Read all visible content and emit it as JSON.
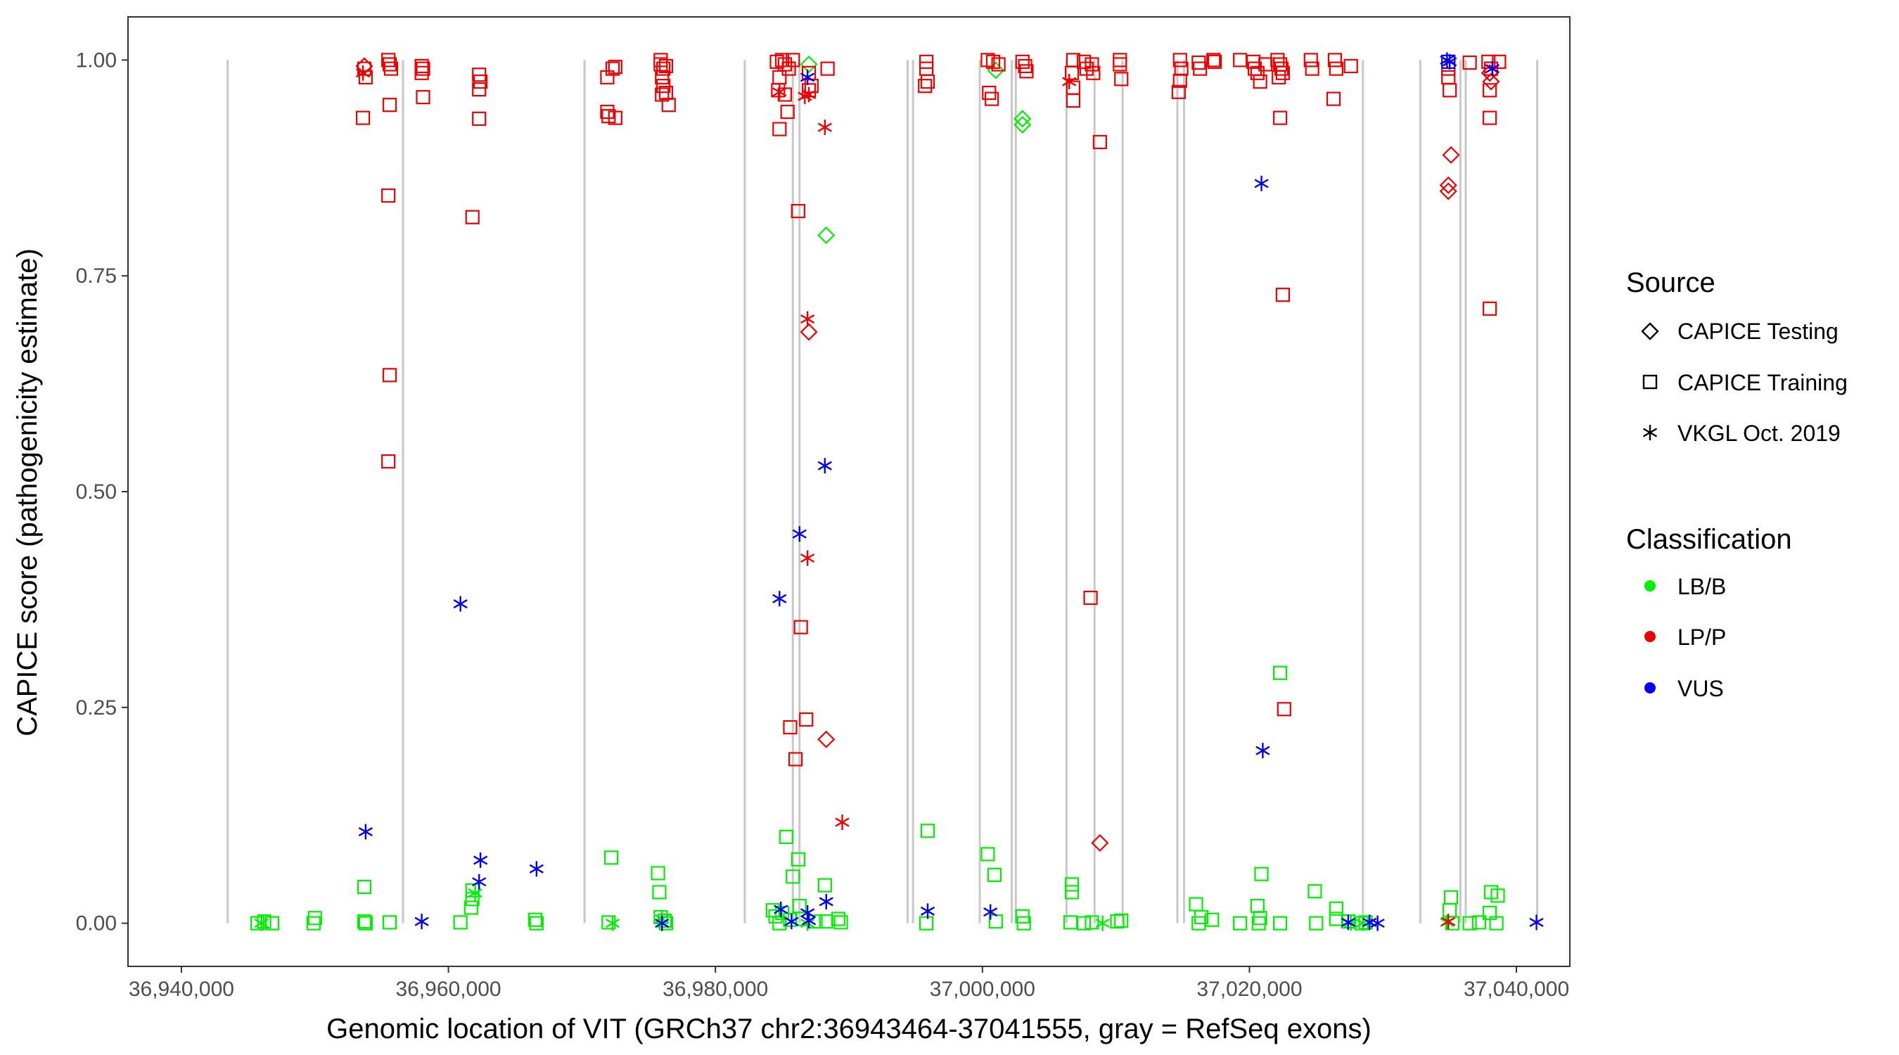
{
  "chart_data": {
    "type": "scatter",
    "xlabel": "Genomic location of VIT (GRCh37 chr2:36943464-37041555, gray = RefSeq exons)",
    "ylabel": "CAPICE score (pathogenicity estimate)",
    "xlim": [
      36936000,
      37044000
    ],
    "ylim": [
      -0.05,
      1.05
    ],
    "x_ticks": [
      36940000,
      36960000,
      36980000,
      37000000,
      37020000,
      37040000
    ],
    "x_tick_labels": [
      "36,940,000",
      "36,960,000",
      "36,980,000",
      "37,000,000",
      "37,020,000",
      "37,040,000"
    ],
    "y_ticks": [
      0,
      0.25,
      0.5,
      0.75,
      1.0
    ],
    "y_tick_labels": [
      "0.00",
      "0.25",
      "0.50",
      "0.75",
      "1.00"
    ],
    "grid": false,
    "exons": [
      36943464,
      36956600,
      36970200,
      36982200,
      36985800,
      36986300,
      36994400,
      36994800,
      36999800,
      37002200,
      37002500,
      37006300,
      37008400,
      37010500,
      37014600,
      37015100,
      37028500,
      37032800,
      37035800,
      37036200,
      37041555
    ],
    "legend_position": "right",
    "legend_source": {
      "title": "Source",
      "entries": [
        {
          "label": "CAPICE Testing",
          "shape": "diamond"
        },
        {
          "label": "CAPICE Training",
          "shape": "square"
        },
        {
          "label": "VKGL Oct. 2019",
          "shape": "asterisk"
        }
      ]
    },
    "legend_classification": {
      "title": "Classification",
      "entries": [
        {
          "label": "LB/B",
          "color": "#00ee00"
        },
        {
          "label": "LP/P",
          "color": "#ee0000"
        },
        {
          "label": "VUS",
          "color": "#0000ee"
        }
      ]
    },
    "series": [
      {
        "class": "LP/P",
        "source": "CAPICE Training",
        "points": [
          [
            36953700,
            0.99
          ],
          [
            36953800,
            0.98
          ],
          [
            36953600,
            0.933
          ],
          [
            36955500,
            1.0
          ],
          [
            36955600,
            0.995
          ],
          [
            36955700,
            0.99
          ],
          [
            36955600,
            0.948
          ],
          [
            36955500,
            0.843
          ],
          [
            36955600,
            0.635
          ],
          [
            36955500,
            0.535
          ],
          [
            36958000,
            0.993
          ],
          [
            36958100,
            0.99
          ],
          [
            36958000,
            0.985
          ],
          [
            36958100,
            0.957
          ],
          [
            36961800,
            0.818
          ],
          [
            36962300,
            0.983
          ],
          [
            36962400,
            0.975
          ],
          [
            36962300,
            0.966
          ],
          [
            36962300,
            0.932
          ],
          [
            36971900,
            0.98
          ],
          [
            36971900,
            0.94
          ],
          [
            36972000,
            0.935
          ],
          [
            36972300,
            0.99
          ],
          [
            36972500,
            0.992
          ],
          [
            36972500,
            0.933
          ],
          [
            36975900,
            1.0
          ],
          [
            36975900,
            0.995
          ],
          [
            36976100,
            0.99
          ],
          [
            36976300,
            0.993
          ],
          [
            36976000,
            0.98
          ],
          [
            36976100,
            0.97
          ],
          [
            36976000,
            0.96
          ],
          [
            36976300,
            0.962
          ],
          [
            36976500,
            0.948
          ],
          [
            36984600,
            0.998
          ],
          [
            36985000,
            1.0
          ],
          [
            36985200,
            0.995
          ],
          [
            36985500,
            0.99
          ],
          [
            36985800,
            1.0
          ],
          [
            36984800,
            0.98
          ],
          [
            36984700,
            0.965
          ],
          [
            36985200,
            0.96
          ],
          [
            36985400,
            0.94
          ],
          [
            36984800,
            0.92
          ],
          [
            36987000,
            0.985
          ],
          [
            36987200,
            0.97
          ],
          [
            36987000,
            0.965
          ],
          [
            36988400,
            0.99
          ],
          [
            36986200,
            0.825
          ],
          [
            36986400,
            0.343
          ],
          [
            36986800,
            0.236
          ],
          [
            36985600,
            0.227
          ],
          [
            36986000,
            0.19
          ],
          [
            36995800,
            0.998
          ],
          [
            36995800,
            0.99
          ],
          [
            36995900,
            0.975
          ],
          [
            36995700,
            0.97
          ],
          [
            37000400,
            1.0
          ],
          [
            37000800,
            0.998
          ],
          [
            37001200,
            0.995
          ],
          [
            37000500,
            0.962
          ],
          [
            37000700,
            0.955
          ],
          [
            37003000,
            0.998
          ],
          [
            37003200,
            0.993
          ],
          [
            37003300,
            0.987
          ],
          [
            37006700,
            0.985
          ],
          [
            37006800,
            0.968
          ],
          [
            37006800,
            0.953
          ],
          [
            37006800,
            1.0
          ],
          [
            37007600,
            0.998
          ],
          [
            37007800,
            0.99
          ],
          [
            37008200,
            0.995
          ],
          [
            37008300,
            0.985
          ],
          [
            37008800,
            0.905
          ],
          [
            37008100,
            0.377
          ],
          [
            37010300,
            1.0
          ],
          [
            37010300,
            0.995
          ],
          [
            37010400,
            0.978
          ],
          [
            37014800,
            1.0
          ],
          [
            37014900,
            0.99
          ],
          [
            37014800,
            0.976
          ],
          [
            37014700,
            0.963
          ],
          [
            37016300,
            0.99
          ],
          [
            37016200,
            0.997
          ],
          [
            37017300,
            1.0
          ],
          [
            37017400,
            0.998
          ],
          [
            37019300,
            1.0
          ],
          [
            37020300,
            0.998
          ],
          [
            37020400,
            0.99
          ],
          [
            37020600,
            0.985
          ],
          [
            37020800,
            0.975
          ],
          [
            37021200,
            0.995
          ],
          [
            37022100,
            1.0
          ],
          [
            37022300,
            0.995
          ],
          [
            37022400,
            0.99
          ],
          [
            37022200,
            0.98
          ],
          [
            37022500,
            0.985
          ],
          [
            37022300,
            0.933
          ],
          [
            37022500,
            0.728
          ],
          [
            37022600,
            0.248
          ],
          [
            37024600,
            1.0
          ],
          [
            37024700,
            0.99
          ],
          [
            37026400,
            1.0
          ],
          [
            37026500,
            0.99
          ],
          [
            37026300,
            0.955
          ],
          [
            37027600,
            0.993
          ],
          [
            37034900,
            0.99
          ],
          [
            37034900,
            0.98
          ],
          [
            37035000,
            0.965
          ],
          [
            37036500,
            0.997
          ],
          [
            37037900,
            0.998
          ],
          [
            37038100,
            0.99
          ],
          [
            37038000,
            0.965
          ],
          [
            37038000,
            0.933
          ],
          [
            37038000,
            0.712
          ],
          [
            37038700,
            0.998
          ]
        ]
      },
      {
        "class": "LP/P",
        "source": "CAPICE Testing",
        "points": [
          [
            36953700,
            0.993
          ],
          [
            36987000,
            0.685
          ],
          [
            36988300,
            0.213
          ],
          [
            37008800,
            0.093
          ],
          [
            37035100,
            0.89
          ],
          [
            37034900,
            0.855
          ],
          [
            37034900,
            0.848
          ],
          [
            37038000,
            0.985
          ],
          [
            37038100,
            0.975
          ]
        ]
      },
      {
        "class": "LP/P",
        "source": "VKGL Oct. 2019",
        "points": [
          [
            36953600,
            0.985
          ],
          [
            36984800,
            0.963
          ],
          [
            36987000,
            0.96
          ],
          [
            36986700,
            0.958
          ],
          [
            36988200,
            0.922
          ],
          [
            36986900,
            0.7
          ],
          [
            36986900,
            0.423
          ],
          [
            36989500,
            0.117
          ],
          [
            37006500,
            0.975
          ],
          [
            37034900,
            0.002
          ],
          [
            37038200,
            0.99
          ]
        ]
      },
      {
        "class": "VUS",
        "source": "VKGL Oct. 2019",
        "points": [
          [
            36953800,
            0.106
          ],
          [
            36958000,
            0.002
          ],
          [
            36960900,
            0.37
          ],
          [
            36962400,
            0.073
          ],
          [
            36962300,
            0.048
          ],
          [
            36966600,
            0.063
          ],
          [
            36976000,
            0.0
          ],
          [
            36984800,
            0.376
          ],
          [
            36984900,
            0.016
          ],
          [
            36985700,
            0.002
          ],
          [
            36986300,
            0.451
          ],
          [
            36986900,
            0.012
          ],
          [
            36987000,
            0.003
          ],
          [
            36986900,
            0.98
          ],
          [
            36988200,
            0.53
          ],
          [
            36988300,
            0.025
          ],
          [
            36995900,
            0.014
          ],
          [
            37000600,
            0.013
          ],
          [
            37020900,
            0.857
          ],
          [
            37021000,
            0.2
          ],
          [
            37027400,
            0.001
          ],
          [
            37029000,
            0.001
          ],
          [
            37029600,
            0.0
          ],
          [
            37034800,
            1.0
          ],
          [
            37035000,
            0.998
          ],
          [
            37038200,
            0.99
          ],
          [
            37041500,
            0.001
          ]
        ]
      },
      {
        "class": "VUS",
        "source": "CAPICE Training",
        "points": [
          [
            37034900,
            0.998
          ]
        ]
      },
      {
        "class": "LB/B",
        "source": "CAPICE Training",
        "points": [
          [
            36945700,
            0.0
          ],
          [
            36946200,
            0.002
          ],
          [
            36946800,
            0.0
          ],
          [
            36949900,
            0.0
          ],
          [
            36950000,
            0.006
          ],
          [
            36953700,
            0.042
          ],
          [
            36953700,
            0.002
          ],
          [
            36953800,
            0.0
          ],
          [
            36955600,
            0.001
          ],
          [
            36960900,
            0.001
          ],
          [
            36961700,
            0.018
          ],
          [
            36961800,
            0.028
          ],
          [
            36961800,
            0.038
          ],
          [
            36966500,
            0.004
          ],
          [
            36966600,
            0.0
          ],
          [
            36972200,
            0.076
          ],
          [
            36972000,
            0.001
          ],
          [
            36975700,
            0.058
          ],
          [
            36975800,
            0.036
          ],
          [
            36975900,
            0.007
          ],
          [
            36976200,
            0.003
          ],
          [
            36976300,
            0.0
          ],
          [
            36984300,
            0.015
          ],
          [
            36984500,
            0.008
          ],
          [
            36984800,
            0.0
          ],
          [
            36985000,
            0.012
          ],
          [
            36985300,
            0.1
          ],
          [
            36985600,
            0.004
          ],
          [
            36985800,
            0.054
          ],
          [
            36986200,
            0.074
          ],
          [
            36986300,
            0.02
          ],
          [
            36986500,
            0.005
          ],
          [
            36987500,
            0.002
          ],
          [
            36988200,
            0.044
          ],
          [
            36988300,
            0.002
          ],
          [
            36989200,
            0.005
          ],
          [
            36989400,
            0.001
          ],
          [
            36995900,
            0.107
          ],
          [
            36995800,
            0.0
          ],
          [
            37000400,
            0.08
          ],
          [
            37000900,
            0.056
          ],
          [
            37001000,
            0.002
          ],
          [
            37003000,
            0.008
          ],
          [
            37003100,
            0.0
          ],
          [
            37006700,
            0.045
          ],
          [
            37006700,
            0.036
          ],
          [
            37006600,
            0.001
          ],
          [
            37007600,
            0.0
          ],
          [
            37008200,
            0.001
          ],
          [
            37010100,
            0.002
          ],
          [
            37010400,
            0.003
          ],
          [
            37016000,
            0.022
          ],
          [
            37016400,
            0.007
          ],
          [
            37016200,
            0.0
          ],
          [
            37017200,
            0.004
          ],
          [
            37019300,
            0.0
          ],
          [
            37020600,
            0.02
          ],
          [
            37020900,
            0.057
          ],
          [
            37020800,
            0.006
          ],
          [
            37022300,
            0.29
          ],
          [
            37022300,
            0.0
          ],
          [
            37020700,
            0.0
          ],
          [
            37024900,
            0.037
          ],
          [
            37025000,
            0.0
          ],
          [
            37026500,
            0.017
          ],
          [
            37026500,
            0.005
          ],
          [
            37027400,
            0.002
          ],
          [
            37028400,
            0.0
          ],
          [
            37028700,
            0.001
          ],
          [
            37035100,
            0.03
          ],
          [
            37035000,
            0.015
          ],
          [
            37035200,
            0.0
          ],
          [
            37036500,
            0.0
          ],
          [
            37037200,
            0.001
          ],
          [
            37038100,
            0.036
          ],
          [
            37038000,
            0.012
          ],
          [
            37038600,
            0.032
          ],
          [
            37038500,
            0.0
          ]
        ]
      },
      {
        "class": "LB/B",
        "source": "CAPICE Testing",
        "points": [
          [
            36987000,
            0.995
          ],
          [
            36988300,
            0.797
          ],
          [
            37003000,
            0.932
          ],
          [
            37003000,
            0.925
          ],
          [
            37001000,
            0.988
          ]
        ]
      },
      {
        "class": "LB/B",
        "source": "VKGL Oct. 2019",
        "points": [
          [
            36946000,
            0.0
          ],
          [
            36962000,
            0.035
          ],
          [
            36972300,
            0.0
          ],
          [
            36976000,
            0.005
          ],
          [
            36986900,
            0.0
          ],
          [
            37009000,
            0.0
          ],
          [
            37027600,
            0.0
          ],
          [
            37028500,
            0.0
          ],
          [
            37034800,
            0.001
          ]
        ]
      }
    ]
  }
}
